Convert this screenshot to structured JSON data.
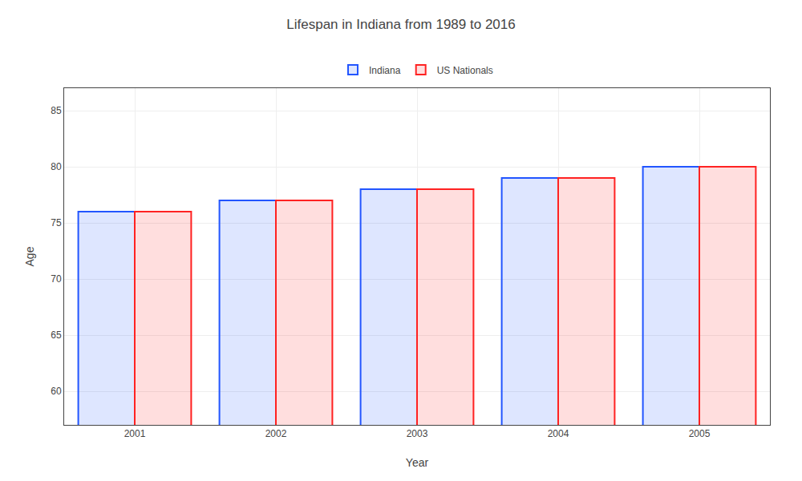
{
  "chart_data": {
    "type": "bar",
    "title": "Lifespan in Indiana from 1989 to 2016",
    "xlabel": "Year",
    "ylabel": "Age",
    "categories": [
      "2001",
      "2002",
      "2003",
      "2004",
      "2005"
    ],
    "series": [
      {
        "name": "Indiana",
        "color": "#2255ff",
        "values": [
          76,
          77,
          78,
          79,
          80
        ]
      },
      {
        "name": "US Nationals",
        "color": "#ff2222",
        "values": [
          76,
          77,
          78,
          79,
          80
        ]
      }
    ],
    "ylim": [
      57,
      87
    ],
    "yticks": [
      60,
      65,
      70,
      75,
      80,
      85
    ],
    "grid": true,
    "legend": "top"
  }
}
